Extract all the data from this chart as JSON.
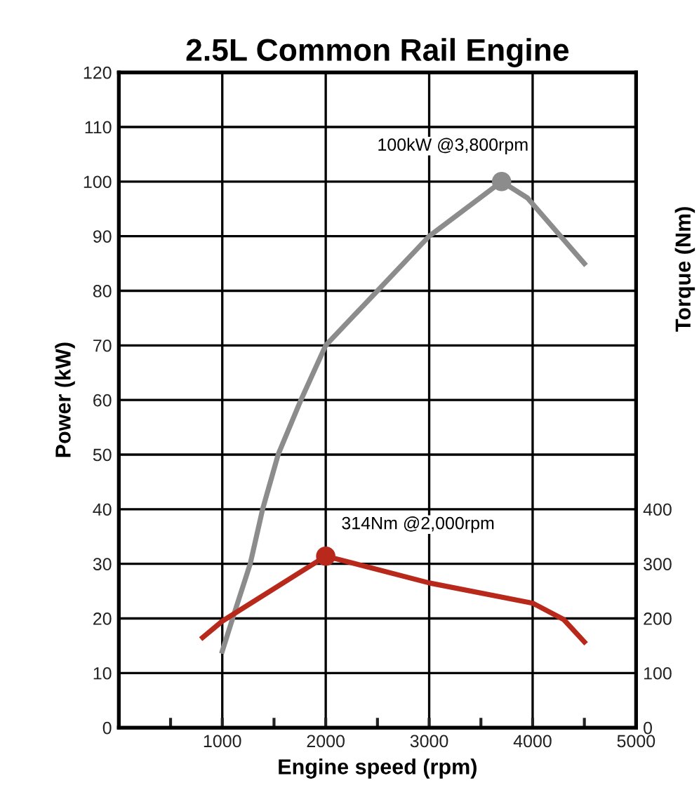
{
  "chart_data": {
    "type": "line",
    "title": "2.5L Common Rail Engine",
    "xlabel": "Engine speed (rpm)",
    "ylabel": "Power (kW)",
    "y2label": "Torque (Nm)",
    "xlim": [
      0,
      5000
    ],
    "xticks": [
      {
        "value": 500,
        "label": null
      },
      1000,
      {
        "value": 1500,
        "label": null
      },
      2000,
      {
        "value": 2500,
        "label": null
      },
      3000,
      {
        "value": 3500,
        "label": null
      },
      4000,
      {
        "value": 4500,
        "label": null
      },
      5000
    ],
    "ylim": [
      0,
      120
    ],
    "yticks": [
      0,
      10,
      20,
      30,
      40,
      50,
      60,
      70,
      80,
      90,
      100,
      110,
      120
    ],
    "y2lim": [
      0,
      1200
    ],
    "y2ticks": [
      0,
      100,
      200,
      300,
      400
    ],
    "grid": true,
    "line_style": "solid",
    "series": [
      {
        "color": "#8c8c8c",
        "x": [
          1000,
          1100,
          1270,
          1390,
          1540,
          1760,
          2000,
          2500,
          3000,
          3700,
          3950,
          4500
        ],
        "values": [
          14,
          20,
          30,
          40,
          50,
          60,
          70,
          80,
          90,
          100,
          97,
          85
        ]
      },
      {
        "color": "#b8291c",
        "axis": "y2",
        "x": [
          810,
          1000,
          2000,
          3000,
          4000,
          4300,
          4500
        ],
        "values": [
          165,
          195,
          314,
          265,
          228,
          198,
          157
        ]
      },
      {
        "type": "scatter",
        "marker": "circle",
        "color": "#8c8c8c",
        "x": [
          3700
        ],
        "values": [
          100
        ]
      },
      {
        "type": "scatter",
        "marker": "circle",
        "color": "#b8291c",
        "axis": "y2",
        "x": [
          2000
        ],
        "values": [
          314
        ]
      }
    ],
    "annotations": [
      "100kW @3,800rpm",
      "314Nm @2,000rpm"
    ]
  }
}
